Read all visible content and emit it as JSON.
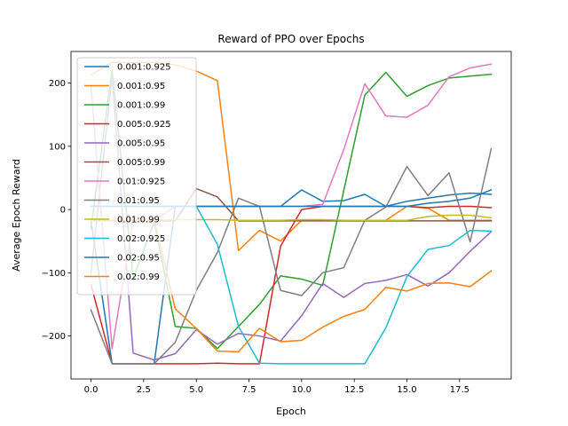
{
  "chart_data": {
    "type": "line",
    "title": "Reward of PPO over Epochs",
    "xlabel": "Epoch",
    "ylabel": "Average Epoch Reward",
    "xlim": [
      -0.95,
      19.95
    ],
    "ylim": [
      -268,
      250
    ],
    "xticks": [
      0.0,
      2.5,
      5.0,
      7.5,
      10.0,
      12.5,
      15.0,
      17.5
    ],
    "xtick_labels": [
      "0.0",
      "2.5",
      "5.0",
      "7.5",
      "10.0",
      "12.5",
      "15.0",
      "17.5"
    ],
    "yticks": [
      -200,
      -100,
      0,
      100,
      200
    ],
    "ytick_labels": [
      "−200",
      "−100",
      "0",
      "100",
      "200"
    ],
    "legend_position": "upper-left",
    "grid": false,
    "x": [
      0,
      1,
      2,
      3,
      4,
      5,
      6,
      7,
      8,
      9,
      10,
      11,
      12,
      13,
      14,
      15,
      16,
      17,
      18,
      19
    ],
    "series": [
      {
        "name": "0.001:0.925",
        "color": "#1f77b4",
        "values": [
          -18,
          -244,
          -244,
          -244,
          5,
          5,
          5,
          5,
          5,
          5,
          31,
          13,
          14,
          24,
          5,
          13,
          18,
          23,
          26,
          24
        ]
      },
      {
        "name": "0.001:0.95",
        "color": "#ff7f0e",
        "values": [
          213,
          233,
          232,
          233,
          229,
          219,
          204,
          -65,
          -33,
          -50,
          -17,
          -17,
          -17,
          -17,
          -17,
          5,
          2,
          -17,
          -17,
          -17
        ]
      },
      {
        "name": "0.001:0.99",
        "color": "#2ca02c",
        "values": [
          -30,
          220,
          -109,
          -20,
          -185,
          -188,
          -220,
          -185,
          -150,
          -105,
          -110,
          -120,
          30,
          181,
          217,
          179,
          196,
          208,
          211,
          214
        ]
      },
      {
        "name": "0.005:0.925",
        "color": "#d62728",
        "values": [
          -119,
          -244,
          -244,
          -244,
          -244,
          -244,
          -243,
          -244,
          -244,
          -58,
          0,
          5,
          5,
          5,
          5,
          5,
          3,
          5,
          5,
          3
        ]
      },
      {
        "name": "0.005:0.95",
        "color": "#9467bd",
        "values": [
          -100,
          210,
          -227,
          -238,
          -228,
          -190,
          -213,
          -196,
          -200,
          -208,
          -168,
          -117,
          -139,
          -117,
          -112,
          -103,
          -121,
          -100,
          -66,
          -35
        ]
      },
      {
        "name": "0.005:0.99",
        "color": "#8c564b",
        "values": [
          -18,
          -18,
          -18,
          -18,
          -18,
          33,
          20,
          -18,
          -18,
          -18,
          -18,
          -18,
          -18,
          -18,
          -18,
          -18,
          -18,
          -18,
          -18,
          -18
        ]
      },
      {
        "name": "0.01:0.925",
        "color": "#e377c2",
        "values": [
          195,
          -220,
          -18,
          -18,
          5,
          5,
          5,
          5,
          5,
          5,
          5,
          8,
          95,
          199,
          148,
          146,
          165,
          210,
          224,
          230
        ]
      },
      {
        "name": "0.01:0.95",
        "color": "#7f7f7f",
        "values": [
          -159,
          -244,
          -244,
          -244,
          -210,
          -128,
          -68,
          18,
          5,
          -128,
          -136,
          -100,
          -92,
          -17,
          4,
          68,
          22,
          58,
          -51,
          96
        ]
      },
      {
        "name": "0.01:0.99",
        "color": "#bcbd22",
        "values": [
          -18,
          -18,
          -18,
          -17,
          -16,
          -16,
          -16,
          -17,
          -17,
          -17,
          -16,
          -16,
          -17,
          -17,
          -17,
          -17,
          -11,
          -9,
          -9,
          -13
        ]
      },
      {
        "name": "0.02:0.925",
        "color": "#17becf",
        "values": [
          5,
          5,
          5,
          5,
          5,
          5,
          -55,
          -185,
          -243,
          -244,
          -244,
          -244,
          -244,
          -244,
          -187,
          -106,
          -63,
          -57,
          -33,
          -34
        ]
      },
      {
        "name": "0.02:0.95",
        "color": "#1f77b4",
        "values": [
          5,
          5,
          5,
          5,
          5,
          5,
          5,
          5,
          5,
          5,
          5,
          5,
          5,
          5,
          5,
          5,
          10,
          13,
          18,
          31
        ]
      },
      {
        "name": "0.02:0.99",
        "color": "#ff7f0e",
        "values": [
          -16,
          -17,
          -17,
          -17,
          -157,
          -188,
          -224,
          -225,
          -188,
          -209,
          -207,
          -186,
          -169,
          -158,
          -123,
          -129,
          -117,
          -116,
          -122,
          -97
        ]
      }
    ]
  }
}
